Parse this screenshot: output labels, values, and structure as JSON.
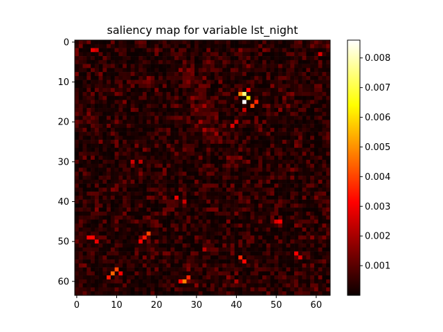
{
  "chart_data": {
    "type": "heatmap",
    "title": "saliency map for variable lst_night",
    "xlabel": "",
    "ylabel": "",
    "grid": false,
    "colormap": "hot",
    "rows": 64,
    "cols": 64,
    "xlim": [
      -0.5,
      63.5
    ],
    "ylim": [
      63.5,
      -0.5
    ],
    "x_ticks": [
      0,
      10,
      20,
      30,
      40,
      50,
      60
    ],
    "y_ticks": [
      0,
      10,
      20,
      30,
      40,
      50,
      60
    ],
    "colorbar": {
      "range": [
        0.0,
        0.0086
      ],
      "ticks": [
        0.001,
        0.002,
        0.003,
        0.004,
        0.005,
        0.006,
        0.007,
        0.008
      ],
      "tick_labels": [
        "0.001",
        "0.002",
        "0.003",
        "0.004",
        "0.005",
        "0.006",
        "0.007",
        "0.008"
      ]
    },
    "background_range": [
      0.0,
      0.0016
    ],
    "hotspots": [
      {
        "row": 13,
        "col": 42,
        "value": 0.0075
      },
      {
        "row": 15,
        "col": 42,
        "value": 0.0086
      },
      {
        "row": 14,
        "col": 43,
        "value": 0.0062
      },
      {
        "row": 13,
        "col": 41,
        "value": 0.0048
      },
      {
        "row": 16,
        "col": 44,
        "value": 0.004
      },
      {
        "row": 15,
        "col": 45,
        "value": 0.0036
      },
      {
        "row": 12,
        "col": 43,
        "value": 0.003
      },
      {
        "row": 17,
        "col": 42,
        "value": 0.0024
      },
      {
        "row": 49,
        "col": 3,
        "value": 0.003
      },
      {
        "row": 49,
        "col": 4,
        "value": 0.0032
      },
      {
        "row": 50,
        "col": 5,
        "value": 0.0028
      },
      {
        "row": 48,
        "col": 18,
        "value": 0.004
      },
      {
        "row": 49,
        "col": 17,
        "value": 0.0034
      },
      {
        "row": 50,
        "col": 16,
        "value": 0.003
      },
      {
        "row": 54,
        "col": 41,
        "value": 0.0036
      },
      {
        "row": 55,
        "col": 42,
        "value": 0.0032
      },
      {
        "row": 53,
        "col": 55,
        "value": 0.003
      },
      {
        "row": 54,
        "col": 56,
        "value": 0.0026
      },
      {
        "row": 58,
        "col": 9,
        "value": 0.0044
      },
      {
        "row": 57,
        "col": 10,
        "value": 0.004
      },
      {
        "row": 59,
        "col": 8,
        "value": 0.0034
      },
      {
        "row": 58,
        "col": 11,
        "value": 0.003
      },
      {
        "row": 60,
        "col": 27,
        "value": 0.0048
      },
      {
        "row": 59,
        "col": 28,
        "value": 0.0036
      },
      {
        "row": 60,
        "col": 26,
        "value": 0.003
      },
      {
        "row": 45,
        "col": 51,
        "value": 0.003
      },
      {
        "row": 45,
        "col": 50,
        "value": 0.0026
      },
      {
        "row": 39,
        "col": 25,
        "value": 0.0028
      },
      {
        "row": 40,
        "col": 27,
        "value": 0.0024
      },
      {
        "row": 30,
        "col": 14,
        "value": 0.0024
      },
      {
        "row": 30,
        "col": 16,
        "value": 0.0022
      },
      {
        "row": 21,
        "col": 39,
        "value": 0.0026
      },
      {
        "row": 20,
        "col": 40,
        "value": 0.0024
      },
      {
        "row": 2,
        "col": 4,
        "value": 0.0028
      },
      {
        "row": 2,
        "col": 5,
        "value": 0.0024
      },
      {
        "row": 3,
        "col": 61,
        "value": 0.0026
      },
      {
        "row": 52,
        "col": 32,
        "value": 0.0022
      },
      {
        "row": 60,
        "col": 40,
        "value": 0.002
      }
    ]
  }
}
